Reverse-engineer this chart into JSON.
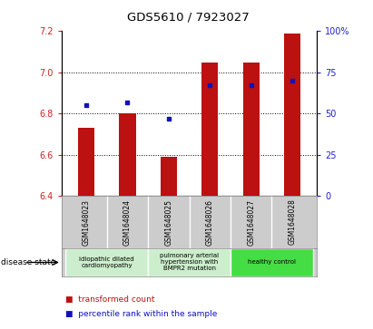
{
  "title": "GDS5610 / 7923027",
  "samples": [
    "GSM1648023",
    "GSM1648024",
    "GSM1648025",
    "GSM1648026",
    "GSM1648027",
    "GSM1648028"
  ],
  "bar_values": [
    6.73,
    6.8,
    6.59,
    7.05,
    7.05,
    7.19
  ],
  "percentile_values": [
    55,
    57,
    47,
    67,
    67,
    70
  ],
  "ylim_left": [
    6.4,
    7.2
  ],
  "ylim_right": [
    0,
    100
  ],
  "yticks_left": [
    6.4,
    6.6,
    6.8,
    7.0,
    7.2
  ],
  "yticks_right": [
    0,
    25,
    50,
    75,
    100
  ],
  "bar_color": "#bb1111",
  "dot_color": "#1111bb",
  "disease_groups": [
    {
      "label": "idiopathic dilated\ncardiomyopathy",
      "indices": [
        0,
        1
      ],
      "color": "#cceecc"
    },
    {
      "label": "pulmonary arterial\nhypertension with\nBMPR2 mutation",
      "indices": [
        2,
        3
      ],
      "color": "#cceecc"
    },
    {
      "label": "healthy control",
      "indices": [
        4,
        5
      ],
      "color": "#44dd44"
    }
  ],
  "legend_items": [
    {
      "label": "transformed count",
      "color": "#bb1111"
    },
    {
      "label": "percentile rank within the sample",
      "color": "#1111bb"
    }
  ],
  "left_tick_color": "#cc2222",
  "right_tick_color": "#2222cc",
  "disease_state_label": "disease state",
  "sample_box_color": "#cccccc",
  "background_color": "#ffffff",
  "bar_width": 0.4
}
